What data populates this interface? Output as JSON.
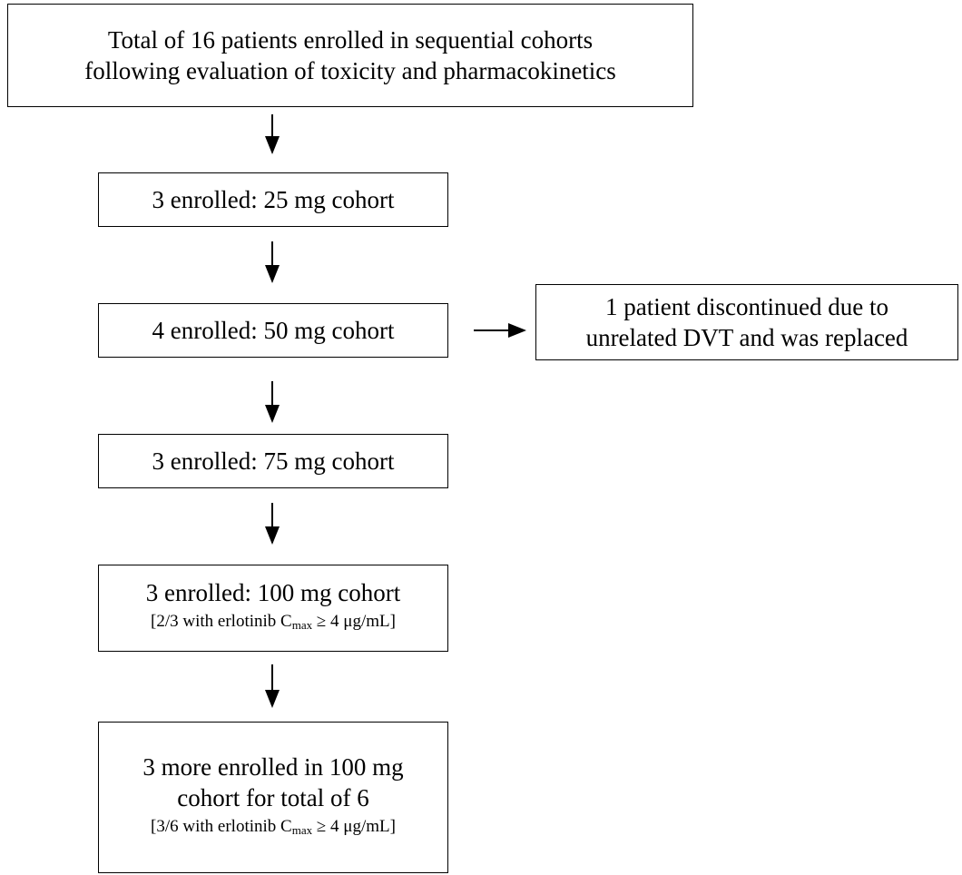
{
  "nodes": [
    {
      "lines": [
        "Total of 16 patients enrolled in sequential cohorts",
        "following evaluation of toxicity and pharmacokinetics"
      ]
    },
    {
      "lines": [
        "3 enrolled: 25 mg cohort"
      ]
    },
    {
      "lines": [
        "4 enrolled: 50 mg cohort"
      ]
    },
    {
      "lines": [
        "1 patient discontinued due to",
        "unrelated DVT and was replaced"
      ]
    },
    {
      "lines": [
        "3 enrolled: 75 mg cohort"
      ]
    },
    {
      "lines": [
        "3 enrolled: 100 mg cohort"
      ],
      "note": [
        "[2/3 with erlotinib C",
        "max",
        " ≥ 4 μg/mL]"
      ]
    },
    {
      "lines": [
        "3 more enrolled in 100 mg",
        "cohort for total of 6"
      ],
      "note": [
        "[3/6 with erlotinib C",
        "max",
        " ≥ 4 μg/mL]"
      ]
    }
  ]
}
